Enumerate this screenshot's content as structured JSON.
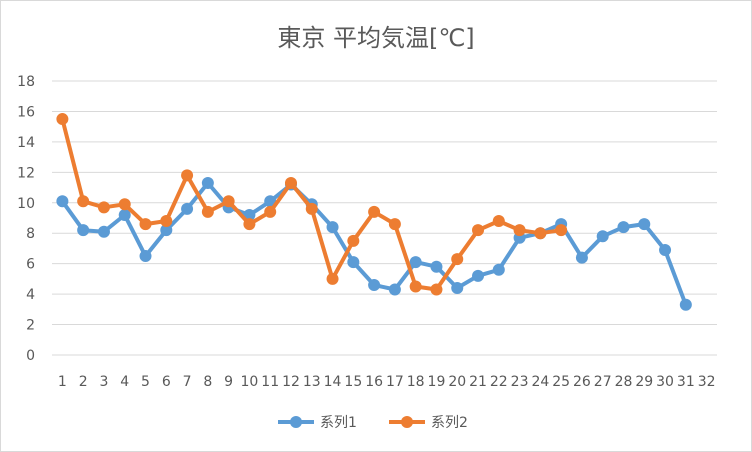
{
  "chart_data": {
    "type": "line",
    "title": "東京 平均気温[℃]",
    "xlabel": "",
    "ylabel": "",
    "categories": [
      "1",
      "2",
      "3",
      "4",
      "5",
      "6",
      "7",
      "8",
      "9",
      "10",
      "11",
      "12",
      "13",
      "14",
      "15",
      "16",
      "17",
      "18",
      "19",
      "20",
      "21",
      "22",
      "23",
      "24",
      "25",
      "26",
      "27",
      "28",
      "29",
      "30",
      "31",
      "32"
    ],
    "ylim": [
      0,
      18
    ],
    "yticks": [
      0,
      2,
      4,
      6,
      8,
      10,
      12,
      14,
      16,
      18
    ],
    "grid": true,
    "legend_position": "bottom",
    "series": [
      {
        "name": "系列1",
        "color": "#5b9bd5",
        "values": [
          10.1,
          8.2,
          8.1,
          9.2,
          6.5,
          8.2,
          9.6,
          11.3,
          9.7,
          9.2,
          10.1,
          11.2,
          9.9,
          8.4,
          6.1,
          4.6,
          4.3,
          6.1,
          5.8,
          4.4,
          5.2,
          5.6,
          7.7,
          8.0,
          8.6,
          6.4,
          7.8,
          8.4,
          8.6,
          6.9,
          3.3,
          null
        ]
      },
      {
        "name": "系列2",
        "color": "#ed7d31",
        "values": [
          15.5,
          10.1,
          9.7,
          9.9,
          8.6,
          8.8,
          11.8,
          9.4,
          10.1,
          8.6,
          9.4,
          11.3,
          9.6,
          5.0,
          7.5,
          9.4,
          8.6,
          4.5,
          4.3,
          6.3,
          8.2,
          8.8,
          8.2,
          8.0,
          8.2,
          null,
          null,
          null,
          null,
          null,
          null,
          null
        ]
      }
    ]
  }
}
